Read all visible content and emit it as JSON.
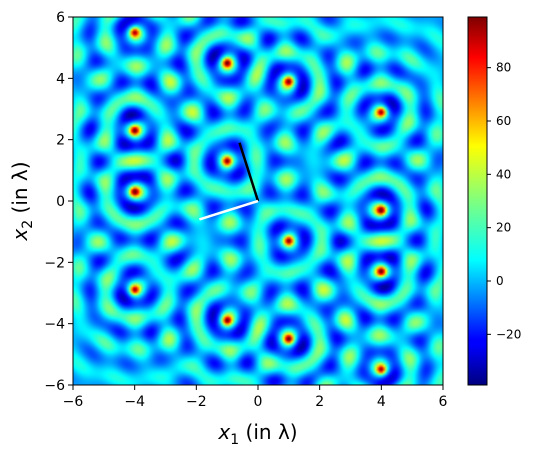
{
  "chart_data": {
    "type": "heatmap",
    "title": "",
    "xlabel_var": "x",
    "xlabel_sub": "1",
    "xlabel_unit": " (in λ)",
    "ylabel_var": "x",
    "ylabel_sub": "2",
    "ylabel_unit": " (in λ)",
    "xlim": [
      -6,
      6
    ],
    "ylim": [
      -6,
      6
    ],
    "xticks": [
      -6,
      -4,
      -2,
      0,
      2,
      4,
      6
    ],
    "yticks": [
      -6,
      -4,
      -2,
      0,
      2,
      4,
      6
    ],
    "colorbar": {
      "colormap": "jet",
      "range": [
        -39,
        99
      ],
      "ticks": [
        -20,
        0,
        20,
        40,
        60,
        80
      ]
    },
    "peaks": [
      {
        "x": -4,
        "y": 5.5
      },
      {
        "x": -1,
        "y": 4.5
      },
      {
        "x": 1,
        "y": 3.9
      },
      {
        "x": 4,
        "y": 2.9
      },
      {
        "x": -4,
        "y": 2.3
      },
      {
        "x": -1,
        "y": 1.3
      },
      {
        "x": -4,
        "y": 0.3
      },
      {
        "x": 4,
        "y": -0.3
      },
      {
        "x": 1,
        "y": -1.3
      },
      {
        "x": 4,
        "y": -2.3
      },
      {
        "x": -4,
        "y": -2.9
      },
      {
        "x": -1,
        "y": -3.9
      },
      {
        "x": 1,
        "y": -4.5
      },
      {
        "x": 4,
        "y": -5.5
      }
    ],
    "vectors": [
      {
        "name": "",
        "color": "#000000",
        "from": [
          0,
          0
        ],
        "to": [
          -0.6,
          1.9
        ]
      },
      {
        "name": "",
        "color": "#ffffff",
        "from": [
          0,
          0
        ],
        "to": [
          -1.9,
          -0.6
        ]
      }
    ]
  }
}
